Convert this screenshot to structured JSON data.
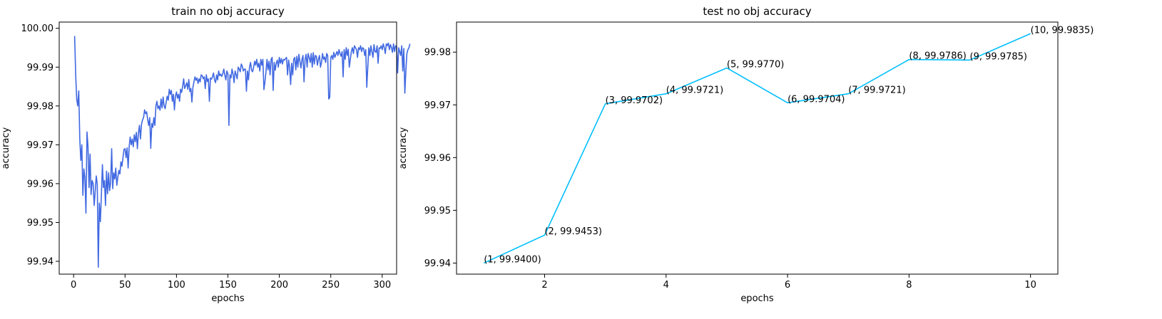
{
  "chart_data": [
    {
      "type": "line",
      "title": "train no obj accuracy",
      "xlabel": "epochs",
      "ylabel": "accuracy",
      "xlim": [
        -14,
        314
      ],
      "ylim": [
        99.9367,
        100.0016
      ],
      "xticks": [
        0,
        50,
        100,
        150,
        200,
        250,
        300
      ],
      "xtick_labels": [
        "0",
        "50",
        "100",
        "150",
        "200",
        "250",
        "300"
      ],
      "yticks": [
        99.94,
        99.95,
        99.96,
        99.97,
        99.98,
        99.99,
        100.0
      ],
      "ytick_labels": [
        "99.94",
        "99.95",
        "99.96",
        "99.97",
        "99.98",
        "99.99",
        "100.00"
      ],
      "grid": false,
      "series": [
        {
          "color": "#4169e1",
          "x_start": 1,
          "x_step": 1,
          "values": [
            99.998,
            99.9882,
            99.9818,
            99.98,
            99.9839,
            99.9716,
            99.966,
            99.97,
            99.957,
            99.9638,
            99.9614,
            99.9524,
            99.9733,
            99.9695,
            99.959,
            99.9676,
            99.9572,
            99.9608,
            99.96,
            99.9544,
            99.958,
            99.962,
            99.9598,
            99.9385,
            99.955,
            99.9502,
            99.957,
            99.9649,
            99.959,
            99.9608,
            99.9544,
            99.9632,
            99.9574,
            99.9628,
            99.9582,
            99.9603,
            99.969,
            99.9587,
            99.9628,
            99.9612,
            99.964,
            99.9596,
            99.9617,
            99.9634,
            99.9625,
            99.9656,
            99.9645,
            99.9667,
            99.9688,
            99.969,
            99.9667,
            99.9692,
            99.964,
            99.9695,
            99.972,
            99.97,
            99.9715,
            99.9695,
            99.9726,
            99.9708,
            99.9732,
            99.969,
            99.973,
            99.975,
            99.9715,
            99.9753,
            99.9764,
            99.977,
            99.979,
            99.978,
            99.9785,
            99.9765,
            99.975,
            99.977,
            99.9691,
            99.9755,
            99.9745,
            99.977,
            99.975,
            99.98,
            99.9812,
            99.9793,
            99.98,
            99.9789,
            99.9818,
            99.9795,
            99.9823,
            99.98,
            99.9793,
            99.981,
            99.9825,
            99.9815,
            99.9843,
            99.983,
            99.984,
            99.9812,
            99.983,
            99.979,
            99.9825,
            99.9836,
            99.982,
            99.983,
            99.9812,
            99.9843,
            99.9835,
            99.985,
            99.987,
            99.9845,
            99.9852,
            99.986,
            99.9843,
            99.9868,
            99.9837,
            99.9845,
            99.981,
            99.9848,
            99.9862,
            99.9875,
            99.9866,
            99.9872,
            99.9858,
            99.987,
            99.9862,
            99.988,
            99.9878,
            99.987,
            99.9875,
            99.9845,
            99.988,
            99.9863,
            99.987,
            99.9812,
            99.9872,
            99.9869,
            99.9875,
            99.9885,
            99.9867,
            99.986,
            99.988,
            99.9867,
            99.989,
            99.9878,
            99.9882,
            99.9876,
            99.9883,
            99.9895,
            99.988,
            99.9867,
            99.989,
            99.9883,
            99.975,
            99.988,
            99.9872,
            99.9895,
            99.9882,
            99.986,
            99.989,
            99.988,
            99.987,
            99.99,
            99.9895,
            99.9888,
            99.9908,
            99.9902,
            99.989,
            99.9895,
            99.9895,
            99.9838,
            99.989,
            99.9867,
            99.99,
            99.9912,
            99.9892,
            99.9888,
            99.99,
            99.9915,
            99.9905,
            99.992,
            99.99,
            99.991,
            99.989,
            99.992,
            99.9905,
            99.992,
            99.9842,
            99.9862,
            99.9888,
            99.992,
            99.9893,
            99.9915,
            99.988,
            99.992,
            99.9925,
            99.984,
            99.9912,
            99.9892,
            99.991,
            99.9918,
            99.99,
            99.9925,
            99.991,
            99.9922,
            99.9908,
            99.992,
            99.9918,
            99.9922,
            99.9925,
            99.988,
            99.9918,
            99.99,
            99.9855,
            99.991,
            99.988,
            99.992,
            99.9925,
            99.9893,
            99.9928,
            99.99,
            99.9933,
            99.9915,
            99.9898,
            99.992,
            99.993,
            99.9862,
            99.992,
            99.9933,
            99.99,
            99.9935,
            99.9925,
            99.9912,
            99.9935,
            99.99,
            99.9937,
            99.9908,
            99.993,
            99.9928,
            99.9905,
            99.992,
            99.993,
            99.99,
            99.9912,
            99.9935,
            99.992,
            99.9926,
            99.9912,
            99.9935,
            99.993,
            99.9818,
            99.9822,
            99.9925,
            99.993,
            99.992,
            99.9938,
            99.9925,
            99.9933,
            99.994,
            99.993,
            99.9945,
            99.9935,
            99.9928,
            99.994,
            99.9875,
            99.9945,
            99.992,
            99.995,
            99.993,
            99.9946,
            99.99,
            99.992,
            99.994,
            99.995,
            99.9935,
            99.9955,
            99.995,
            99.9945,
            99.9925,
            99.995,
            99.9945,
            99.9955,
            99.994,
            99.995,
            99.9948,
            99.993,
            99.9945,
            99.9848,
            99.99,
            99.995,
            99.993,
            99.9955,
            99.994,
            99.9925,
            99.9958,
            99.994,
            99.9938,
            99.9955,
            99.991,
            99.995,
            99.9948,
            99.9955,
            99.9945,
            99.996,
            99.995,
            99.9935,
            99.996,
            99.9955,
            99.9962,
            99.9945,
            99.9958,
            99.995,
            99.9938,
            99.996,
            99.994,
            99.9955,
            99.9953,
            99.9885,
            99.995,
            99.994,
            99.993,
            99.9955,
            99.989,
            99.9948,
            99.9833,
            99.989,
            99.9935,
            99.9945,
            99.995,
            99.996
          ]
        }
      ]
    },
    {
      "type": "line",
      "title": "test no obj accuracy",
      "xlabel": "epochs",
      "ylabel": "accuracy",
      "xlim": [
        0.55,
        10.45
      ],
      "ylim": [
        99.9379,
        99.9857
      ],
      "xticks": [
        2,
        4,
        6,
        8,
        10
      ],
      "xtick_labels": [
        "2",
        "4",
        "6",
        "8",
        "10"
      ],
      "yticks": [
        99.94,
        99.95,
        99.96,
        99.97,
        99.98
      ],
      "ytick_labels": [
        "99.94",
        "99.95",
        "99.96",
        "99.97",
        "99.98"
      ],
      "grid": false,
      "series": [
        {
          "color": "#00bfff",
          "x": [
            1,
            2,
            3,
            4,
            5,
            6,
            7,
            8,
            9,
            10
          ],
          "values": [
            99.94,
            99.9453,
            99.9702,
            99.9721,
            99.977,
            99.9704,
            99.9721,
            99.9786,
            99.9785,
            99.9835
          ],
          "point_labels": [
            "(1, 99.9400)",
            "(2, 99.9453)",
            "(3, 99.9702)",
            "(4, 99.9721)",
            "(5, 99.9770)",
            "(6, 99.9704)",
            "(7, 99.9721)",
            "(8, 99.9786)",
            "(9, 99.9785)",
            "(10, 99.9835)"
          ]
        }
      ]
    }
  ]
}
